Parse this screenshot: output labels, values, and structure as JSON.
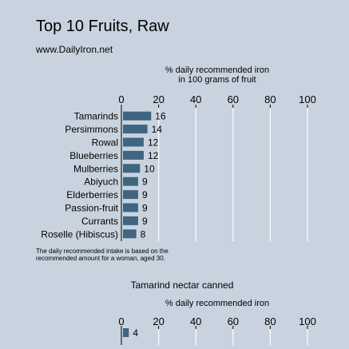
{
  "header": {
    "title": "Top 10 Fruits, Raw",
    "subtitle": "www.DailyIron.net"
  },
  "note": {
    "line1": "The daily recommended intake is based on the",
    "line2": "recommended amount for a woman, aged 30."
  },
  "colors": {
    "background": "#c9d3df",
    "bar": "#3f6581",
    "grid": "#ffffff",
    "axis": "#000000"
  },
  "chart_data": [
    {
      "type": "bar",
      "orientation": "horizontal",
      "title": "",
      "xlabel": "% daily recommended iron\nin 100 grams of fruit",
      "ylabel": "",
      "xlim": [
        0,
        100
      ],
      "xticks": [
        0,
        20,
        40,
        60,
        80,
        100
      ],
      "grid": true,
      "categories": [
        "Tamarinds",
        "Persimmons",
        "Rowal",
        "Blueberries",
        "Mulberries",
        "Abiyuch",
        "Elderberries",
        "Passion-fruit",
        "Currants",
        "Roselle (Hibiscus)"
      ],
      "values": [
        16,
        14,
        12,
        12,
        10,
        9,
        9,
        9,
        9,
        8
      ]
    },
    {
      "type": "bar",
      "orientation": "horizontal",
      "title": "Tamarind nectar canned",
      "xlabel": "% daily recommended iron",
      "ylabel": "",
      "xlim": [
        0,
        100
      ],
      "xticks": [
        0,
        20,
        40,
        60,
        80,
        100
      ],
      "grid": true,
      "categories": [
        ""
      ],
      "values": [
        4
      ]
    }
  ]
}
